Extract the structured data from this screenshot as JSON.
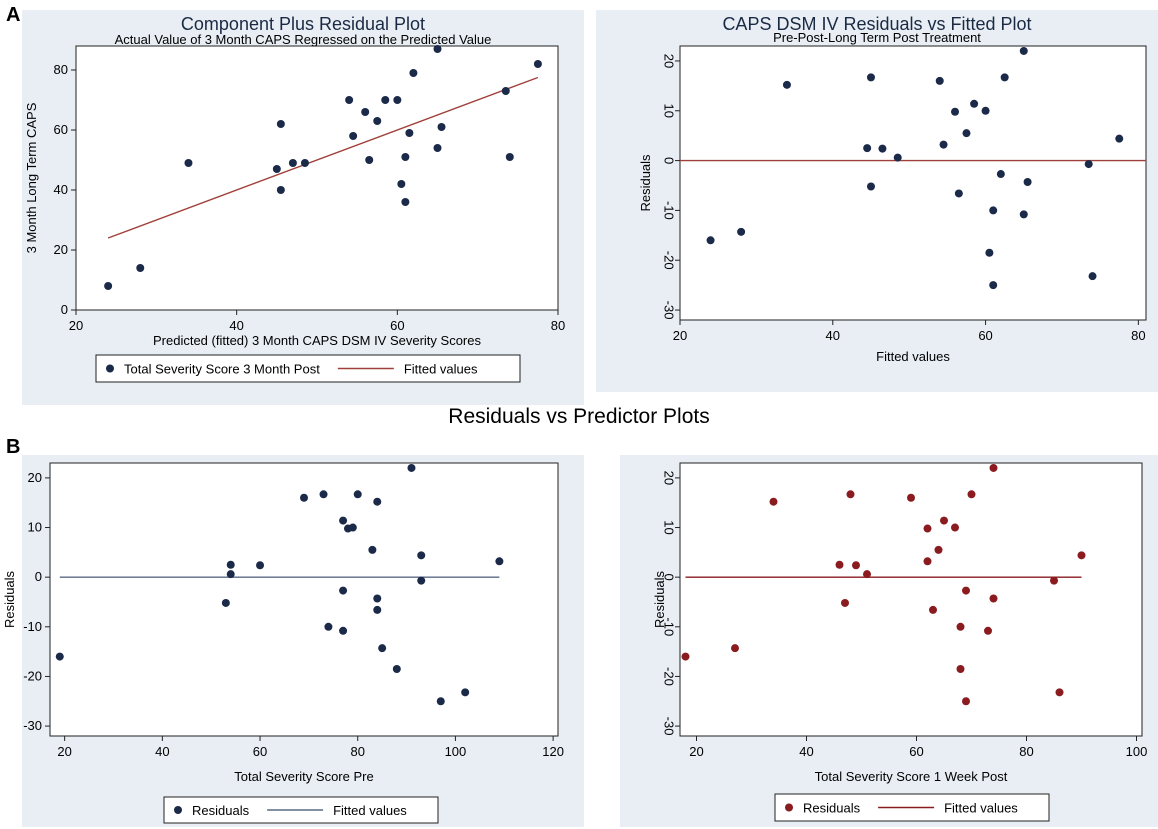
{
  "labels": {
    "panel_a": "A",
    "panel_b": "B",
    "section_b_title": "Residuals vs Predictor Plots"
  },
  "chart_data": [
    {
      "id": "component-plus-residual",
      "type": "scatter",
      "title": "Component Plus Residual Plot",
      "subtitle": "Actual Value of 3 Month CAPS Regressed on the Predicted Value",
      "xlabel": "Predicted (fitted) 3 Month CAPS DSM IV Severity Scores",
      "ylabel": "3 Month Long Term CAPS",
      "xlim": [
        20,
        80
      ],
      "ylim": [
        0,
        88
      ],
      "xticks": [
        20,
        40,
        60,
        80
      ],
      "yticks": [
        0,
        20,
        40,
        60,
        80
      ],
      "y_tick_rotated": false,
      "point_color": "#1c2a4a",
      "line_color": "#a0403a",
      "legend": [
        "Total Severity Score 3 Month Post",
        "Fitted values"
      ],
      "points": [
        [
          24,
          8
        ],
        [
          28,
          14
        ],
        [
          34,
          49
        ],
        [
          45,
          47
        ],
        [
          45.5,
          62
        ],
        [
          45.5,
          40
        ],
        [
          47,
          49
        ],
        [
          48.5,
          49
        ],
        [
          54,
          70
        ],
        [
          54.5,
          58
        ],
        [
          56,
          66
        ],
        [
          56.5,
          50
        ],
        [
          57.5,
          63
        ],
        [
          58.5,
          70
        ],
        [
          60,
          70
        ],
        [
          60.5,
          42
        ],
        [
          61,
          36
        ],
        [
          61,
          51
        ],
        [
          61.5,
          59
        ],
        [
          62,
          79
        ],
        [
          65,
          54
        ],
        [
          65,
          87
        ],
        [
          65.5,
          61
        ],
        [
          73.5,
          73
        ],
        [
          74,
          51
        ],
        [
          77.5,
          82
        ]
      ],
      "fit": [
        [
          24,
          24
        ],
        [
          77.5,
          77.5
        ]
      ]
    },
    {
      "id": "residuals-vs-fitted",
      "type": "scatter",
      "title": "CAPS DSM IV Residuals vs Fitted Plot",
      "subtitle": "Pre-Post-Long Term Post Treatment",
      "xlabel": "Fitted values",
      "ylabel": "Residuals",
      "xlim": [
        20,
        81
      ],
      "ylim": [
        -32,
        23
      ],
      "xticks": [
        20,
        40,
        60,
        80
      ],
      "yticks": [
        -30,
        -20,
        -10,
        0,
        10,
        20
      ],
      "y_tick_rotated": true,
      "point_color": "#1c2a4a",
      "line_color": "#a0403a",
      "legend": [],
      "points": [
        [
          24,
          -16
        ],
        [
          28,
          -14.3
        ],
        [
          34,
          15.2
        ],
        [
          44.5,
          2.5
        ],
        [
          45,
          -5.2
        ],
        [
          45,
          16.7
        ],
        [
          46.5,
          2.4
        ],
        [
          48.5,
          0.6
        ],
        [
          54,
          16
        ],
        [
          54.5,
          3.2
        ],
        [
          56,
          9.8
        ],
        [
          56.5,
          -6.6
        ],
        [
          57.5,
          5.5
        ],
        [
          58.5,
          11.4
        ],
        [
          60,
          10
        ],
        [
          60.5,
          -18.5
        ],
        [
          61,
          -25
        ],
        [
          61,
          -10
        ],
        [
          62,
          -2.7
        ],
        [
          62.5,
          16.7
        ],
        [
          65,
          -10.8
        ],
        [
          65,
          22
        ],
        [
          65.5,
          -4.3
        ],
        [
          73.5,
          -0.7
        ],
        [
          74,
          -23.2
        ],
        [
          77.5,
          4.4
        ]
      ],
      "fit": [
        [
          20,
          0
        ],
        [
          81,
          0
        ]
      ]
    },
    {
      "id": "residuals-vs-severity-pre",
      "type": "scatter",
      "title": "",
      "subtitle": "",
      "xlabel": "Total Severity Score Pre",
      "ylabel": "Residuals",
      "xlim": [
        17,
        121
      ],
      "ylim": [
        -32,
        23
      ],
      "xticks": [
        20,
        40,
        60,
        80,
        100,
        120
      ],
      "yticks": [
        -30,
        -20,
        -10,
        0,
        10,
        20
      ],
      "y_tick_rotated": false,
      "point_color": "#1c2a4a",
      "line_color": "#5a6a86",
      "legend": [
        "Residuals",
        "Fitted values"
      ],
      "points": [
        [
          19,
          -16
        ],
        [
          53,
          -5.2
        ],
        [
          54,
          2.5
        ],
        [
          54,
          0.6
        ],
        [
          60,
          2.4
        ],
        [
          69,
          16
        ],
        [
          73,
          16.7
        ],
        [
          74,
          -10
        ],
        [
          77,
          11.4
        ],
        [
          77,
          -2.7
        ],
        [
          77,
          -10.8
        ],
        [
          78,
          9.8
        ],
        [
          79,
          10
        ],
        [
          80,
          16.7
        ],
        [
          83,
          5.5
        ],
        [
          84,
          15.2
        ],
        [
          84,
          -4.3
        ],
        [
          84,
          -6.6
        ],
        [
          85,
          -14.3
        ],
        [
          88,
          -18.5
        ],
        [
          91,
          22
        ],
        [
          93,
          4.4
        ],
        [
          93,
          -0.7
        ],
        [
          97,
          -25
        ],
        [
          102,
          -23.2
        ],
        [
          109,
          3.2
        ]
      ],
      "fit": [
        [
          19,
          0
        ],
        [
          109,
          0
        ]
      ]
    },
    {
      "id": "residuals-vs-severity-1-week",
      "type": "scatter",
      "title": "",
      "subtitle": "",
      "xlabel": "Total Severity Score 1 Week Post",
      "ylabel": "Residuals",
      "xlim": [
        17,
        101
      ],
      "ylim": [
        -32,
        23
      ],
      "xticks": [
        20,
        40,
        60,
        80,
        100
      ],
      "yticks": [
        -30,
        -20,
        -10,
        0,
        10,
        20
      ],
      "y_tick_rotated": true,
      "point_color": "#8a1c20",
      "line_color": "#8a1c20",
      "legend": [
        "Residuals",
        "Fitted values"
      ],
      "points": [
        [
          18,
          -16
        ],
        [
          27,
          -14.3
        ],
        [
          34,
          15.2
        ],
        [
          46,
          2.5
        ],
        [
          47,
          -5.2
        ],
        [
          48,
          16.7
        ],
        [
          49,
          2.4
        ],
        [
          51,
          0.6
        ],
        [
          59,
          16
        ],
        [
          62,
          9.8
        ],
        [
          62,
          3.2
        ],
        [
          63,
          -6.6
        ],
        [
          64,
          5.5
        ],
        [
          65,
          11.4
        ],
        [
          67,
          10
        ],
        [
          68,
          -18.5
        ],
        [
          68,
          -10
        ],
        [
          69,
          -25
        ],
        [
          69,
          -2.7
        ],
        [
          70,
          16.7
        ],
        [
          73,
          -10.8
        ],
        [
          74,
          22
        ],
        [
          74,
          -4.3
        ],
        [
          85,
          -0.7
        ],
        [
          86,
          -23.2
        ],
        [
          90,
          4.4
        ]
      ],
      "fit": [
        [
          18,
          0
        ],
        [
          90,
          0
        ]
      ]
    }
  ]
}
